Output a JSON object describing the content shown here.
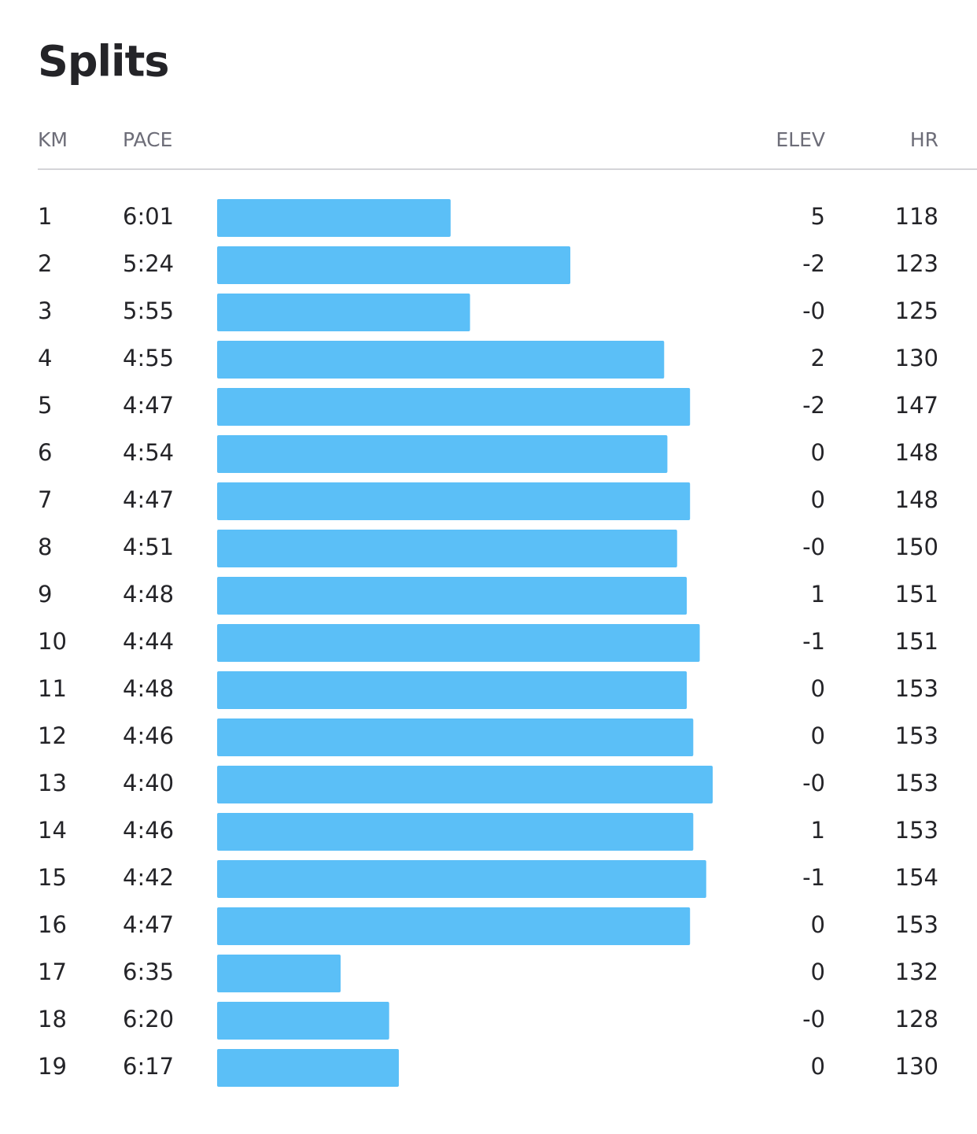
{
  "header": {
    "title": "Splits"
  },
  "columns": {
    "km": "KM",
    "pace": "PACE",
    "elev": "ELEV",
    "hr": "HR"
  },
  "rows": [
    {
      "km": 1,
      "pace": "6:01",
      "elev": 5,
      "hr": 118
    },
    {
      "km": 2,
      "pace": "5:24",
      "elev": -2,
      "hr": 123
    },
    {
      "km": 3,
      "pace": "5:55",
      "elev": "-0",
      "hr": 125
    },
    {
      "km": 4,
      "pace": "4:55",
      "elev": 2,
      "hr": 130
    },
    {
      "km": 5,
      "pace": "4:47",
      "elev": -2,
      "hr": 147
    },
    {
      "km": 6,
      "pace": "4:54",
      "elev": 0,
      "hr": 148
    },
    {
      "km": 7,
      "pace": "4:47",
      "elev": 0,
      "hr": 148
    },
    {
      "km": 8,
      "pace": "4:51",
      "elev": "-0",
      "hr": 150
    },
    {
      "km": 9,
      "pace": "4:48",
      "elev": 1,
      "hr": 151
    },
    {
      "km": 10,
      "pace": "4:44",
      "elev": -1,
      "hr": 151
    },
    {
      "km": 11,
      "pace": "4:48",
      "elev": 0,
      "hr": 153
    },
    {
      "km": 12,
      "pace": "4:46",
      "elev": 0,
      "hr": 153
    },
    {
      "km": 13,
      "pace": "4:40",
      "elev": "-0",
      "hr": 153
    },
    {
      "km": 14,
      "pace": "4:46",
      "elev": 1,
      "hr": 153
    },
    {
      "km": 15,
      "pace": "4:42",
      "elev": -1,
      "hr": 154
    },
    {
      "km": 16,
      "pace": "4:47",
      "elev": 0,
      "hr": 153
    },
    {
      "km": 17,
      "pace": "6:35",
      "elev": 0,
      "hr": 132
    },
    {
      "km": 18,
      "pace": "6:20",
      "elev": "-0",
      "hr": 128
    },
    {
      "km": 19,
      "pace": "6:17",
      "elev": 0,
      "hr": 130
    }
  ]
}
